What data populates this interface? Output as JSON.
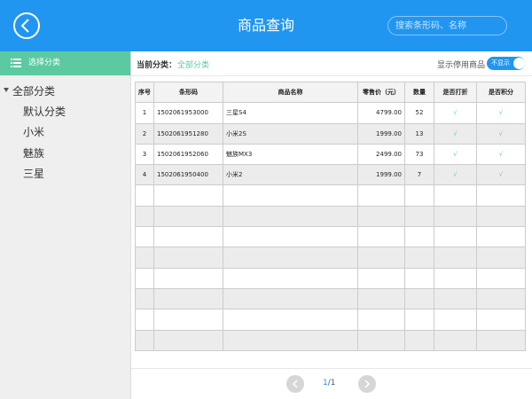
{
  "header": {
    "title": "商品查询",
    "search_placeholder": "搜索条形码、名称"
  },
  "sidebar": {
    "header": "选择分类",
    "tree": {
      "label": "全部分类",
      "children": [
        "默认分类",
        "小米",
        "魅族",
        "三星"
      ]
    }
  },
  "toolbar": {
    "category_label": "当前分类：",
    "category_value": "全部分类",
    "show_disabled_label": "显示停用商品",
    "toggle_label": "不显示"
  },
  "table": {
    "columns": [
      "序号",
      "条形码",
      "商品名称",
      "零售价（元）",
      "数量",
      "是否打折",
      "是否积分"
    ],
    "rows": [
      [
        "1",
        "1502061953000",
        "三星S4",
        "4799.00",
        "52",
        "√",
        "√"
      ],
      [
        "2",
        "1502061951280",
        "小米2S",
        "1999.00",
        "13",
        "√",
        "√"
      ],
      [
        "3",
        "1502061952060",
        "魅族MX3",
        "2499.00",
        "73",
        "√",
        "√"
      ],
      [
        "4",
        "1502061950400",
        "小米2",
        "1999.00",
        "7",
        "√",
        "√"
      ]
    ]
  },
  "pagination": {
    "current": "1",
    "separator": "/",
    "total": "1"
  }
}
